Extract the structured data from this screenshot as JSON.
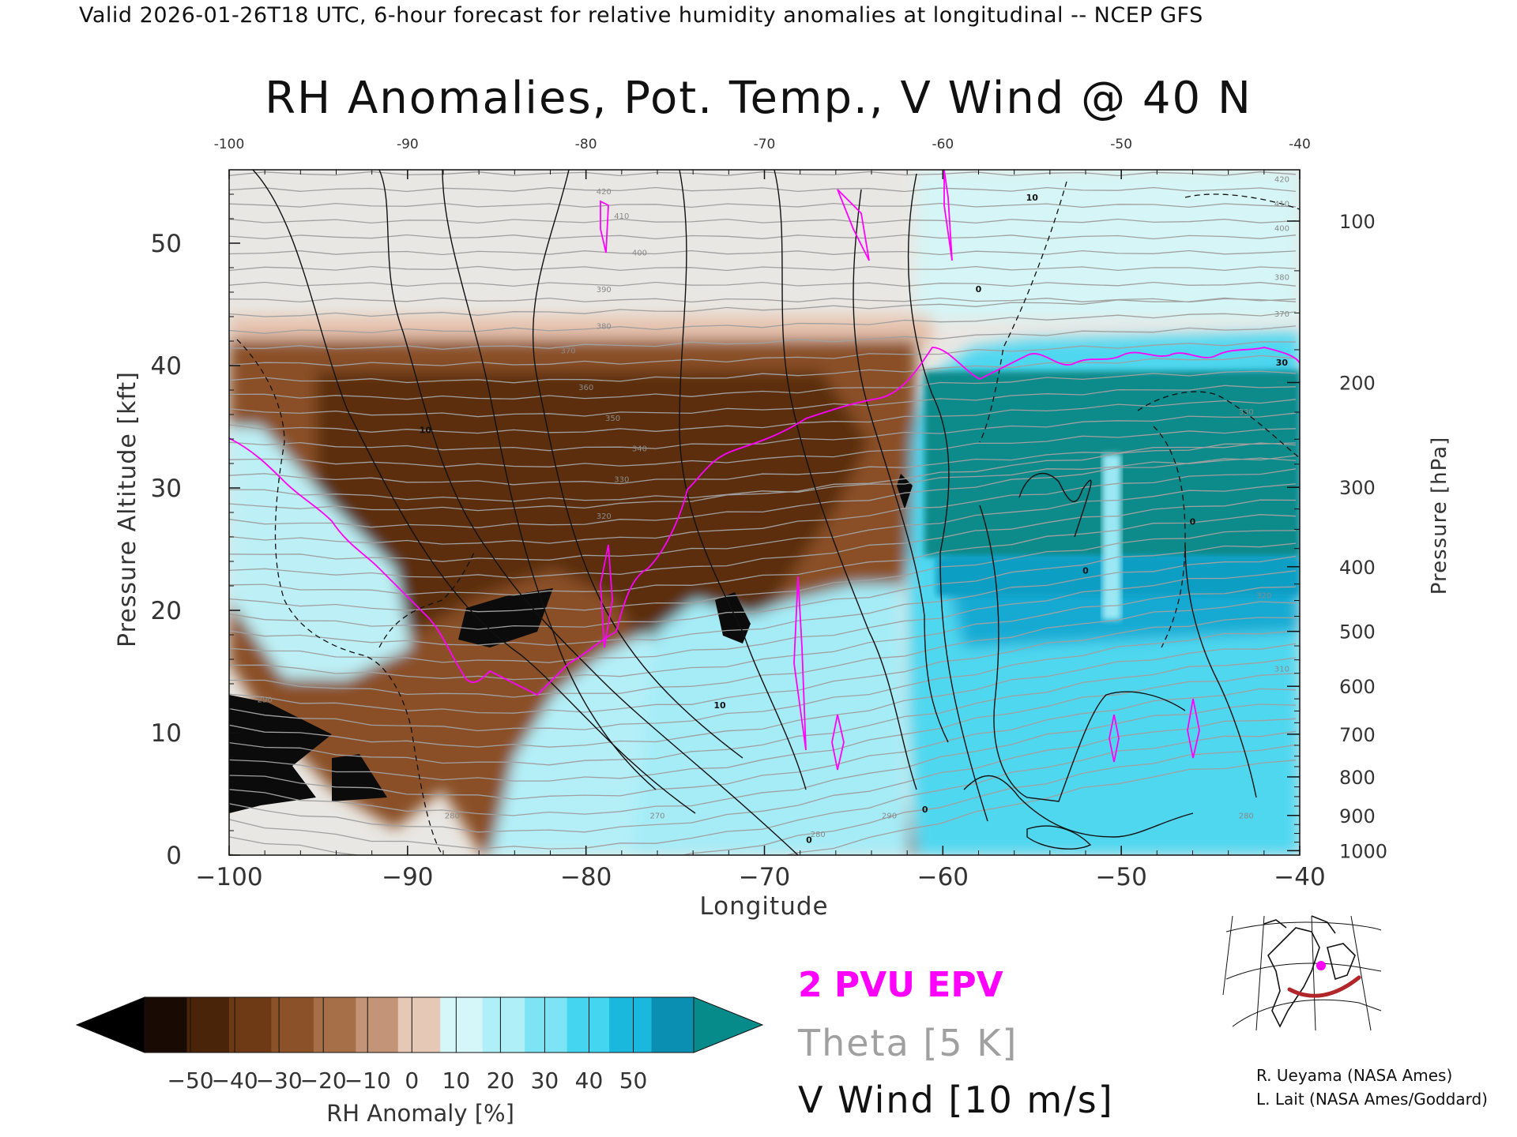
{
  "header": {
    "text": "Valid 2026-01-26T18 UTC, 6-hour forecast for relative humidity anomalies at longitudinal -- NCEP GFS"
  },
  "chart_data": {
    "type": "heatmap",
    "title": "RH Anomalies, Pot. Temp., V Wind @ 40 N",
    "xlabel": "Longitude",
    "ylabel_left": "Pressure Altitude [kft]",
    "ylabel_right": "Pressure [hPa]",
    "x_range": [
      -100,
      -40
    ],
    "y_range_kft": [
      0,
      56
    ],
    "x_ticks": [
      -100,
      -90,
      -80,
      -70,
      -60,
      -50,
      -40
    ],
    "x_tick_labels_bottom": [
      "−100",
      "−90",
      "−80",
      "−70",
      "−60",
      "−50",
      "−40"
    ],
    "x_tick_labels_top": [
      "-100",
      "-90",
      "-80",
      "-70",
      "-60",
      "-50",
      "-40"
    ],
    "y_ticks_kft": [
      0,
      10,
      20,
      30,
      40,
      50
    ],
    "y_ticks_hpa": [
      100,
      200,
      300,
      400,
      500,
      600,
      700,
      800,
      900,
      1000
    ],
    "theta_contour_labels": [
      {
        "lon": -79,
        "kft": 54,
        "value": "420"
      },
      {
        "lon": -78,
        "kft": 52,
        "value": "410"
      },
      {
        "lon": -77,
        "kft": 49,
        "value": "400"
      },
      {
        "lon": -79,
        "kft": 46,
        "value": "390"
      },
      {
        "lon": -79,
        "kft": 43,
        "value": "380"
      },
      {
        "lon": -81,
        "kft": 41,
        "value": "370"
      },
      {
        "lon": -80,
        "kft": 38,
        "value": "360"
      },
      {
        "lon": -78.5,
        "kft": 35.5,
        "value": "350"
      },
      {
        "lon": -77,
        "kft": 33,
        "value": "340"
      },
      {
        "lon": -78,
        "kft": 30.5,
        "value": "330"
      },
      {
        "lon": -79,
        "kft": 27.5,
        "value": "320"
      },
      {
        "lon": -98,
        "kft": 12.5,
        "value": "290"
      },
      {
        "lon": -87.5,
        "kft": 3,
        "value": "280"
      },
      {
        "lon": -76,
        "kft": 3,
        "value": "270"
      },
      {
        "lon": -67,
        "kft": 1.5,
        "value": "280"
      },
      {
        "lon": -63,
        "kft": 3,
        "value": "290"
      },
      {
        "lon": -41,
        "kft": 55,
        "value": "420"
      },
      {
        "lon": -41,
        "kft": 53,
        "value": "410"
      },
      {
        "lon": -41,
        "kft": 51,
        "value": "400"
      },
      {
        "lon": -41,
        "kft": 47,
        "value": "380"
      },
      {
        "lon": -41,
        "kft": 44,
        "value": "370"
      },
      {
        "lon": -43,
        "kft": 36,
        "value": "330"
      },
      {
        "lon": -42,
        "kft": 21,
        "value": "320"
      },
      {
        "lon": -41,
        "kft": 15,
        "value": "310"
      },
      {
        "lon": -43,
        "kft": 3,
        "value": "280"
      }
    ],
    "wind_contour_labels": [
      {
        "lon": -89,
        "kft": 34.5,
        "value": "10"
      },
      {
        "lon": -72.5,
        "kft": 12,
        "value": "10"
      },
      {
        "lon": -61,
        "kft": 3.5,
        "value": "0"
      },
      {
        "lon": -67.5,
        "kft": 1,
        "value": "0"
      },
      {
        "lon": -52,
        "kft": 23,
        "value": "0"
      },
      {
        "lon": -55,
        "kft": 53.5,
        "value": "10"
      },
      {
        "lon": -46,
        "kft": 27,
        "value": "0"
      },
      {
        "lon": -41,
        "kft": 40,
        "value": "30"
      },
      {
        "lon": -58,
        "kft": 46,
        "value": "0"
      }
    ],
    "colorbar": {
      "label": "RH Anomaly [%]",
      "ticks": [
        "−50",
        "−40",
        "−30",
        "−20",
        "−10",
        "0",
        "10",
        "20",
        "30",
        "40",
        "50"
      ],
      "colors": [
        "#1a0a04",
        "#4a2409",
        "#6e3a15",
        "#8b5229",
        "#a66f48",
        "#c49478",
        "#e5c8b6",
        "#d6f7fa",
        "#aeeff8",
        "#7ce4f4",
        "#44d5f0",
        "#1ab8dc",
        "#0a8fb3"
      ],
      "under_color": "#000000",
      "over_color": "#078a8a"
    },
    "legend": {
      "pv": "2 PVU EPV",
      "theta": "Theta [5 K]",
      "wind": "V Wind [10 m/s]"
    }
  },
  "credits": {
    "line1": "R. Ueyama (NASA Ames)",
    "line2": "L. Lait (NASA Ames/Goddard)"
  },
  "colors": {
    "pv_contour": "#ff00ff",
    "theta_contour": "#a0a0a0",
    "wind_contour": "#111111",
    "transect": "#c0302a",
    "location_marker": "#ff00ff"
  }
}
